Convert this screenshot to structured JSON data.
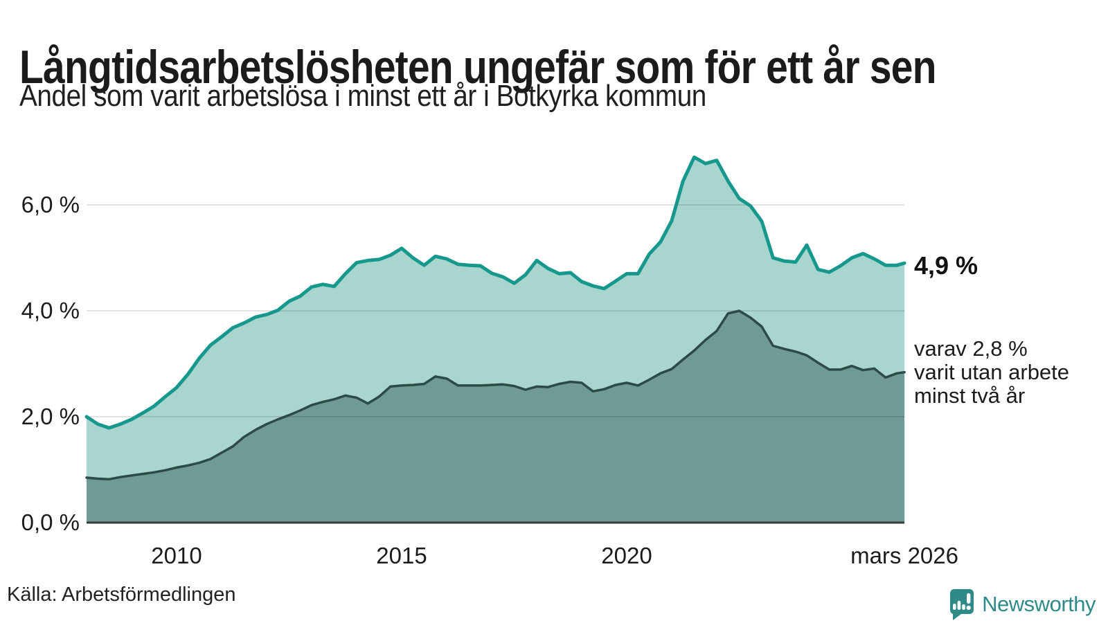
{
  "header": {
    "title": "Långtidsarbetslösheten ungefär som för ett år sen",
    "subtitle": "Andel som varit arbetslösa i minst ett år i Botkyrka kommun"
  },
  "annotations": {
    "upper_end_value": "4,9 %",
    "lower_note_lines": [
      "varav 2,8 %",
      "varit utan arbete",
      "minst två år"
    ]
  },
  "footer": {
    "source": "Källa: Arbetsförmedlingen",
    "brand": "Newsworthy"
  },
  "colors": {
    "upper_line": "#17988c",
    "upper_fill": "#a9d5cf",
    "lower_line": "#2d4a46",
    "lower_fill": "#6f9a95",
    "gridline": "rgba(0,0,0,0.11)",
    "baseline": "#3c3c3c",
    "brand_teal": "#2e8b88"
  },
  "chart_data": {
    "type": "area",
    "title": "Långtidsarbetslösheten ungefär som för ett år sen",
    "subtitle": "Andel som varit arbetslösa i minst ett år i Botkyrka kommun",
    "unit": "percent of workforce",
    "grid": "horizontal",
    "legend": "none (direct labels at line ends)",
    "xlim": [
      2008,
      2026.17
    ],
    "ylim": [
      0,
      7.3
    ],
    "x_ticks": {
      "values": [
        2010,
        2015,
        2020,
        2026.17
      ],
      "labels": [
        "2010",
        "2015",
        "2020",
        "mars 2026"
      ]
    },
    "y_ticks": {
      "values": [
        0,
        2,
        4,
        6
      ],
      "labels": [
        "0,0 %",
        "2,0 %",
        "4,0 %",
        "6,0 %"
      ]
    },
    "x": [
      2008,
      2008.25,
      2008.5,
      2008.75,
      2009,
      2009.25,
      2009.5,
      2009.75,
      2010,
      2010.25,
      2010.5,
      2010.75,
      2011,
      2011.25,
      2011.5,
      2011.75,
      2012,
      2012.25,
      2012.5,
      2012.75,
      2013,
      2013.25,
      2013.5,
      2013.75,
      2014,
      2014.25,
      2014.5,
      2014.75,
      2015,
      2015.25,
      2015.5,
      2015.75,
      2016,
      2016.25,
      2016.5,
      2016.75,
      2017,
      2017.25,
      2017.5,
      2017.75,
      2018,
      2018.25,
      2018.5,
      2018.75,
      2019,
      2019.25,
      2019.5,
      2019.75,
      2020,
      2020.25,
      2020.5,
      2020.75,
      2021,
      2021.25,
      2021.5,
      2021.75,
      2022,
      2022.25,
      2022.5,
      2022.75,
      2023,
      2023.25,
      2023.5,
      2023.75,
      2024,
      2024.25,
      2024.5,
      2024.75,
      2025,
      2025.25,
      2025.5,
      2025.75,
      2026,
      2026.17
    ],
    "series": [
      {
        "name": "Arbetslösa minst ett år",
        "end_label": "4,9 %",
        "values": [
          2.0,
          1.86,
          1.79,
          1.86,
          1.95,
          2.07,
          2.2,
          2.38,
          2.55,
          2.8,
          3.1,
          3.35,
          3.51,
          3.68,
          3.77,
          3.88,
          3.93,
          4.01,
          4.18,
          4.28,
          4.45,
          4.5,
          4.46,
          4.7,
          4.91,
          4.95,
          4.97,
          5.05,
          5.18,
          5.0,
          4.86,
          5.03,
          4.98,
          4.88,
          4.86,
          4.85,
          4.71,
          4.64,
          4.52,
          4.68,
          4.95,
          4.8,
          4.7,
          4.72,
          4.55,
          4.47,
          4.42,
          4.56,
          4.7,
          4.7,
          5.07,
          5.3,
          5.7,
          6.45,
          6.9,
          6.78,
          6.84,
          6.45,
          6.12,
          5.98,
          5.69,
          5.0,
          4.94,
          4.92,
          5.24,
          4.78,
          4.73,
          4.85,
          5.0,
          5.08,
          4.98,
          4.86,
          4.86,
          4.9
        ]
      },
      {
        "name": "varav utan arbete minst två år",
        "end_label": "varav 2,8 % varit utan arbete minst två år",
        "values": [
          0.85,
          0.83,
          0.82,
          0.86,
          0.89,
          0.92,
          0.95,
          0.99,
          1.04,
          1.08,
          1.13,
          1.2,
          1.32,
          1.44,
          1.62,
          1.75,
          1.86,
          1.95,
          2.03,
          2.12,
          2.22,
          2.28,
          2.33,
          2.4,
          2.36,
          2.25,
          2.38,
          2.57,
          2.59,
          2.6,
          2.62,
          2.76,
          2.72,
          2.59,
          2.59,
          2.59,
          2.6,
          2.61,
          2.58,
          2.51,
          2.57,
          2.56,
          2.62,
          2.66,
          2.64,
          2.48,
          2.52,
          2.6,
          2.64,
          2.59,
          2.7,
          2.82,
          2.9,
          3.08,
          3.25,
          3.45,
          3.62,
          3.95,
          4.0,
          3.87,
          3.7,
          3.34,
          3.28,
          3.23,
          3.16,
          3.02,
          2.89,
          2.89,
          2.96,
          2.88,
          2.91,
          2.74,
          2.82,
          2.84
        ]
      }
    ]
  }
}
